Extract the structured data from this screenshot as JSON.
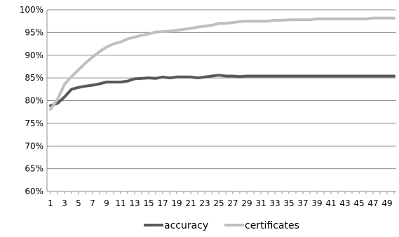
{
  "chart_data": {
    "type": "line",
    "title": "",
    "xlabel": "",
    "ylabel": "",
    "x": [
      1,
      2,
      3,
      4,
      5,
      6,
      7,
      8,
      9,
      10,
      11,
      12,
      13,
      14,
      15,
      16,
      17,
      18,
      19,
      20,
      21,
      22,
      23,
      24,
      25,
      26,
      27,
      28,
      29,
      30,
      31,
      32,
      33,
      34,
      35,
      36,
      37,
      38,
      39,
      40,
      41,
      42,
      43,
      44,
      45,
      46,
      47,
      48,
      49,
      50
    ],
    "x_tick_labels": [
      "1",
      "3",
      "5",
      "7",
      "9",
      "11",
      "13",
      "15",
      "17",
      "19",
      "21",
      "23",
      "25",
      "27",
      "29",
      "31",
      "33",
      "35",
      "37",
      "39",
      "41",
      "43",
      "45",
      "47",
      "49"
    ],
    "x_tick_values": [
      1,
      3,
      5,
      7,
      9,
      11,
      13,
      15,
      17,
      19,
      21,
      23,
      25,
      27,
      29,
      31,
      33,
      35,
      37,
      39,
      41,
      43,
      45,
      47,
      49
    ],
    "ylim": [
      60,
      100
    ],
    "y_tick_values": [
      60,
      65,
      70,
      75,
      80,
      85,
      90,
      95,
      100
    ],
    "y_tick_labels": [
      "60%",
      "65%",
      "70%",
      "75%",
      "80%",
      "85%",
      "90%",
      "95%",
      "100%"
    ],
    "grid": "horizontal",
    "legend_position": "bottom",
    "series": [
      {
        "name": "accuracy",
        "color": "#595959",
        "values": [
          78.9,
          79.4,
          80.8,
          82.5,
          82.9,
          83.2,
          83.4,
          83.7,
          84.1,
          84.1,
          84.1,
          84.3,
          84.8,
          84.9,
          85.0,
          84.9,
          85.2,
          85.0,
          85.2,
          85.2,
          85.2,
          85.0,
          85.2,
          85.4,
          85.6,
          85.4,
          85.4,
          85.3,
          85.4,
          85.4,
          85.4,
          85.4,
          85.4,
          85.4,
          85.4,
          85.4,
          85.4,
          85.4,
          85.4,
          85.4,
          85.4,
          85.4,
          85.4,
          85.4,
          85.4,
          85.4,
          85.4,
          85.4,
          85.4,
          85.4
        ]
      },
      {
        "name": "certificates",
        "color": "#bfbfbf",
        "values": [
          78.1,
          80.3,
          83.6,
          85.3,
          86.8,
          88.3,
          89.6,
          90.8,
          91.8,
          92.5,
          92.9,
          93.6,
          94.0,
          94.4,
          94.7,
          95.1,
          95.2,
          95.3,
          95.5,
          95.7,
          95.9,
          96.2,
          96.4,
          96.6,
          97.0,
          97.0,
          97.2,
          97.4,
          97.5,
          97.5,
          97.5,
          97.5,
          97.7,
          97.7,
          97.8,
          97.8,
          97.8,
          97.8,
          98.0,
          98.0,
          98.0,
          98.0,
          98.0,
          98.0,
          98.0,
          98.0,
          98.2,
          98.2,
          98.2,
          98.2
        ]
      }
    ]
  }
}
